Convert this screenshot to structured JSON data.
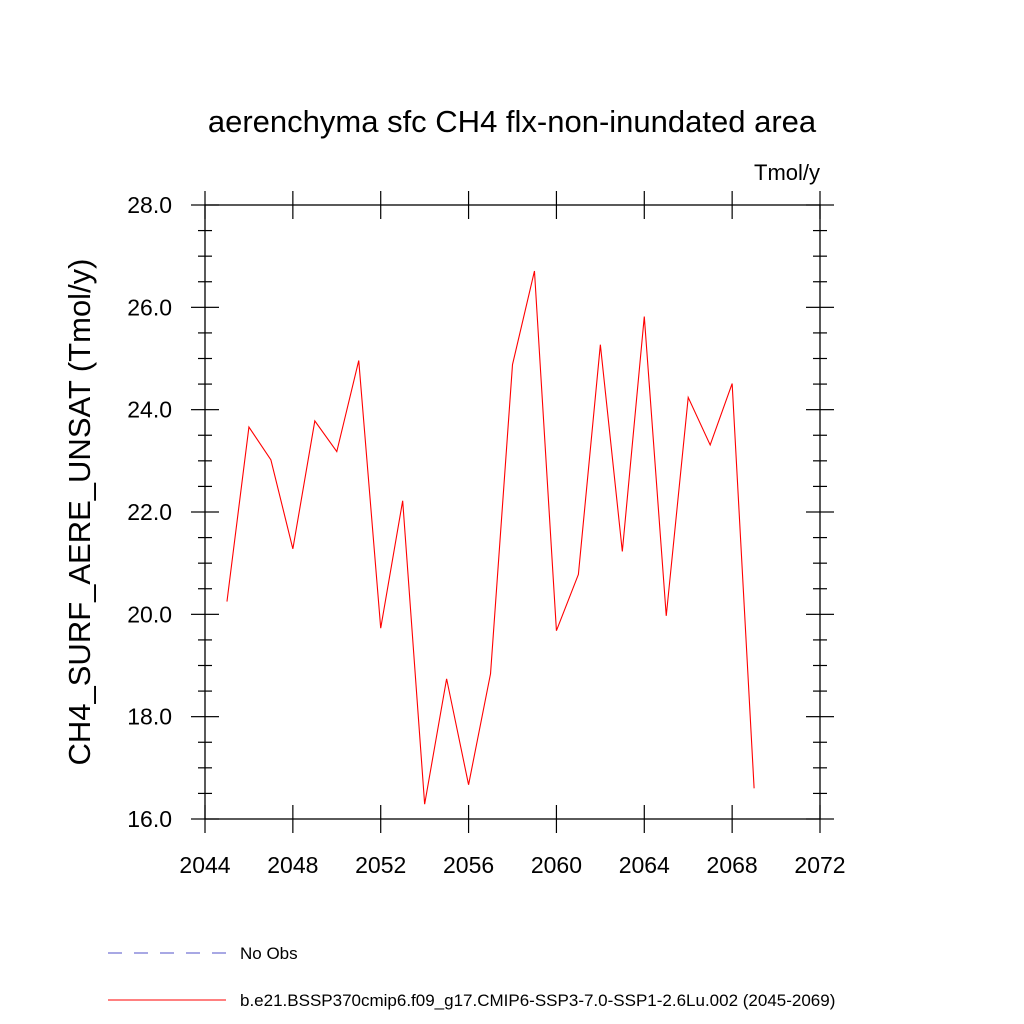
{
  "chart_data": {
    "type": "line",
    "title": "aerenchyma sfc CH4 flx-non-inundated area",
    "units": "Tmol/y",
    "ylabel": "CH4_SURF_AERE_UNSAT  (Tmol/y)",
    "xlabel": "",
    "xlim": [
      2044,
      2072
    ],
    "ylim": [
      16.0,
      28.0
    ],
    "xticks": [
      2044,
      2048,
      2052,
      2056,
      2060,
      2064,
      2068,
      2072
    ],
    "xtick_labels": [
      "2044",
      "2048",
      "2052",
      "2056",
      "2060",
      "2064",
      "2068",
      "2072"
    ],
    "yticks": [
      16.0,
      18.0,
      20.0,
      22.0,
      24.0,
      26.0,
      28.0
    ],
    "ytick_labels": [
      "16.0",
      "18.0",
      "20.0",
      "22.0",
      "24.0",
      "26.0",
      "28.0"
    ],
    "grid": false,
    "legend_position": "bottom",
    "series": [
      {
        "name": "No Obs",
        "color": "#5050c8",
        "dash": "dashed",
        "x": [],
        "values": []
      },
      {
        "name": "b.e21.BSSP370cmip6.f09_g17.CMIP6-SSP3-7.0-SSP1-2.6Lu.002 (2045-2069)",
        "color": "#ff0000",
        "dash": "solid",
        "x": [
          2045,
          2046,
          2047,
          2048,
          2049,
          2050,
          2051,
          2052,
          2053,
          2054,
          2055,
          2056,
          2057,
          2058,
          2059,
          2060,
          2061,
          2062,
          2063,
          2064,
          2065,
          2066,
          2067,
          2068,
          2069
        ],
        "values": [
          20.25,
          23.66,
          23.02,
          21.28,
          23.78,
          23.18,
          24.96,
          19.73,
          22.22,
          16.29,
          18.74,
          16.67,
          18.84,
          24.88,
          26.71,
          19.68,
          20.78,
          25.27,
          21.23,
          25.82,
          19.97,
          24.24,
          23.31,
          24.51,
          16.6
        ]
      }
    ]
  }
}
